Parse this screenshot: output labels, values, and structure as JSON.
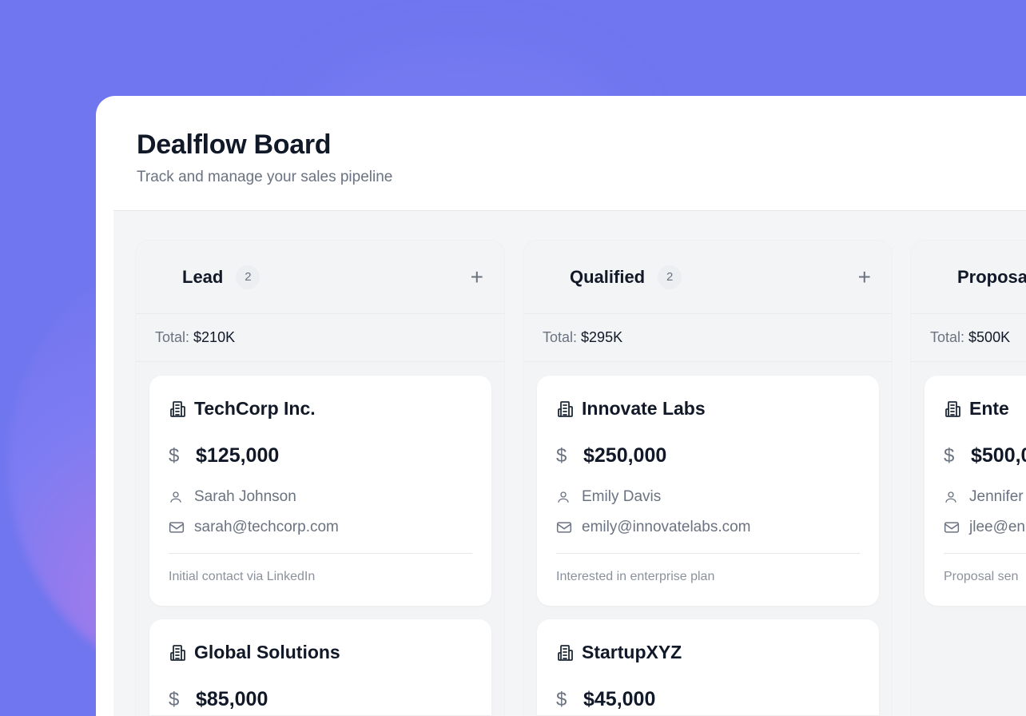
{
  "header": {
    "title": "Dealflow Board",
    "subtitle": "Track and manage your sales pipeline"
  },
  "columns": [
    {
      "name": "Lead",
      "count": "2",
      "add_icon": "plus-icon",
      "total_label": "Total:",
      "total": "$210K",
      "deals": [
        {
          "company": "TechCorp Inc.",
          "amount": "$125,000",
          "contact": "Sarah Johnson",
          "email": "sarah@techcorp.com",
          "note": "Initial contact via LinkedIn"
        },
        {
          "company": "Global Solutions",
          "amount": "$85,000"
        }
      ]
    },
    {
      "name": "Qualified",
      "count": "2",
      "add_icon": "plus-icon",
      "total_label": "Total:",
      "total": "$295K",
      "deals": [
        {
          "company": "Innovate Labs",
          "amount": "$250,000",
          "contact": "Emily Davis",
          "email": "emily@innovatelabs.com",
          "note": "Interested in enterprise plan"
        },
        {
          "company": "StartupXYZ",
          "amount": "$45,000"
        }
      ]
    },
    {
      "name": "Proposa",
      "total_label": "Total:",
      "total": "$500K",
      "deals": [
        {
          "company": "Ente",
          "amount": "$500,0",
          "contact": "Jennifer",
          "email": "jlee@en",
          "note": "Proposal sen"
        }
      ]
    }
  ],
  "colors": {
    "background": "#6f76ef",
    "board": "#f4f5f7",
    "text": "#111827",
    "muted": "#6b7280"
  }
}
